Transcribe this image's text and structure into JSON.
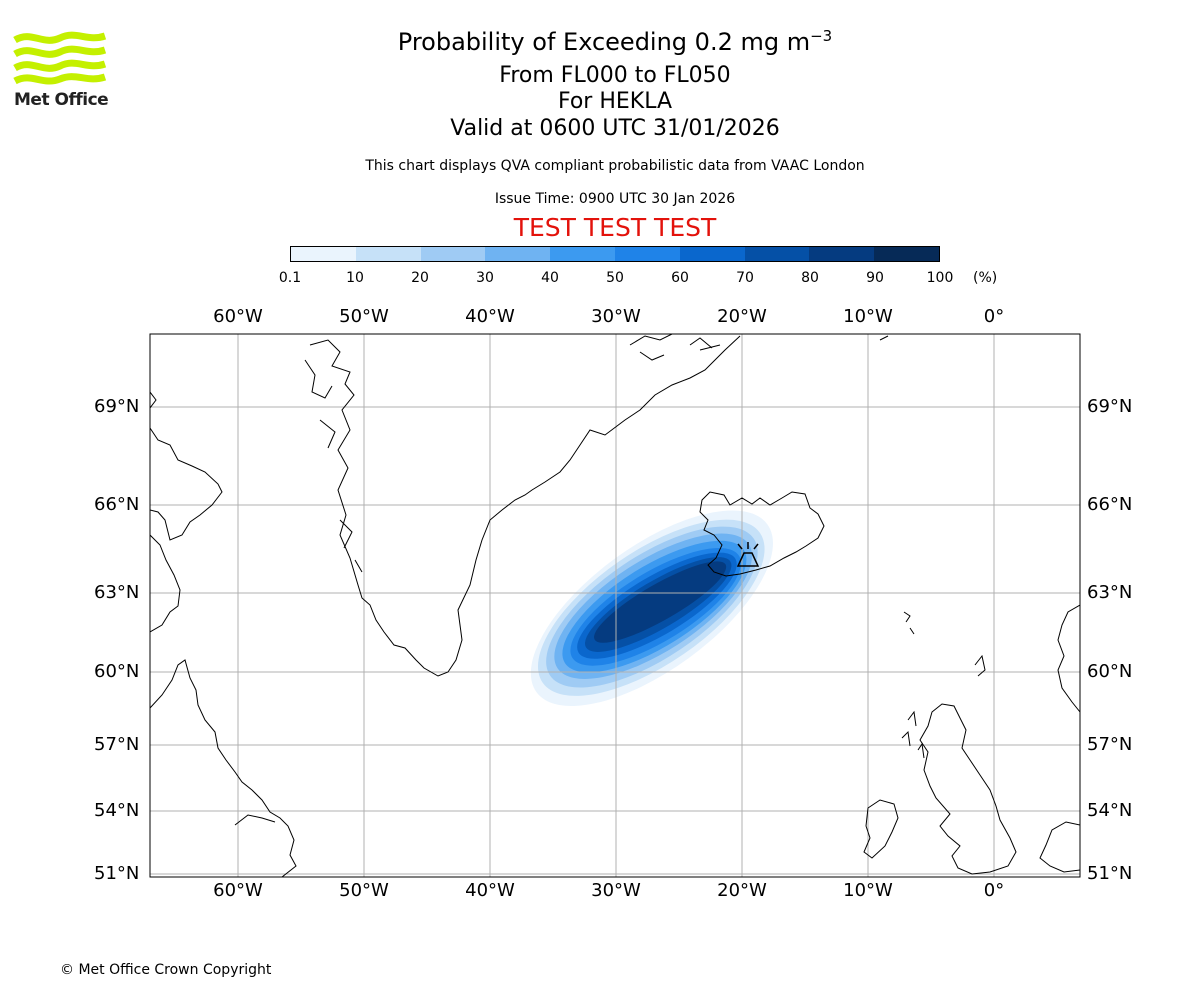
{
  "branding": {
    "logo_text": "Met Office",
    "copyright": "© Met Office Crown Copyright"
  },
  "header": {
    "title_main": "Probability of Exceeding 0.2 mg m",
    "title_exponent": "−3",
    "flight_levels": "From FL000 to FL050",
    "volcano": "For HEKLA",
    "valid_time": "Valid at 0600 UTC 31/01/2026",
    "description": "This chart displays QVA compliant probabilistic data from VAAC London",
    "issue_time": "Issue Time: 0900 UTC 30 Jan 2026",
    "test_banner": "TEST TEST TEST"
  },
  "colorbar": {
    "ticks": [
      "0.1",
      "10",
      "20",
      "30",
      "40",
      "50",
      "60",
      "70",
      "80",
      "90",
      "100"
    ],
    "unit": "(%)",
    "colors": [
      "#eaf4fd",
      "#c6e1f8",
      "#9fcbf4",
      "#6fb3f2",
      "#3c9af0",
      "#1f83e8",
      "#0a67cd",
      "#0550a6",
      "#053b80",
      "#062a57"
    ]
  },
  "map": {
    "lon_labels": [
      "60°W",
      "50°W",
      "40°W",
      "30°W",
      "20°W",
      "10°W",
      "0°"
    ],
    "lat_labels": [
      "69°N",
      "66°N",
      "63°N",
      "60°N",
      "57°N",
      "54°N",
      "51°N"
    ],
    "grid_color": "#b0b0b0",
    "volcano_symbol": "volcano-icon"
  },
  "chart_data": {
    "type": "heatmap",
    "variable": "Probability of exceeding 0.2 mg m-3 ash concentration (%)",
    "flight_levels": "FL000 to FL050",
    "volcano": "HEKLA",
    "volcano_location": {
      "lat": 63.98,
      "lon": -19.7
    },
    "lon_ticks": [
      -60,
      -50,
      -40,
      -30,
      -20,
      -10,
      0
    ],
    "lat_ticks": [
      69,
      66,
      63,
      60,
      57,
      54,
      51
    ],
    "xlim": [
      -67,
      6.7
    ],
    "ylim": [
      51,
      71
    ],
    "plume_levels": [
      {
        "band": "0.1-10",
        "value": 5,
        "lat_min": 59.1,
        "lat_max": 65.4,
        "lon_min": -36.5,
        "lon_max": -17.8
      },
      {
        "band": "10-20",
        "value": 15,
        "lat_min": 59.5,
        "lat_max": 65.1,
        "lon_min": -36.0,
        "lon_max": -18.4
      },
      {
        "band": "20-30",
        "value": 25,
        "lat_min": 59.8,
        "lat_max": 64.9,
        "lon_min": -35.4,
        "lon_max": -18.9
      },
      {
        "band": "30-40",
        "value": 35,
        "lat_min": 60.1,
        "lat_max": 64.7,
        "lon_min": -34.8,
        "lon_max": -19.3
      },
      {
        "band": "40-50",
        "value": 45,
        "lat_min": 60.3,
        "lat_max": 64.5,
        "lon_min": -34.2,
        "lon_max": -19.7
      },
      {
        "band": "50-60",
        "value": 55,
        "lat_min": 60.5,
        "lat_max": 64.3,
        "lon_min": -33.6,
        "lon_max": -20.1
      },
      {
        "band": "60-70",
        "value": 65,
        "lat_min": 60.7,
        "lat_max": 64.2,
        "lon_min": -33.1,
        "lon_max": -20.4
      },
      {
        "band": "70-80",
        "value": 75,
        "lat_min": 60.9,
        "lat_max": 64.1,
        "lon_min": -32.5,
        "lon_max": -20.8
      },
      {
        "band": "80-90",
        "value": 85,
        "lat_min": 61.2,
        "lat_max": 64.0,
        "lon_min": -31.8,
        "lon_max": -21.2
      }
    ]
  }
}
